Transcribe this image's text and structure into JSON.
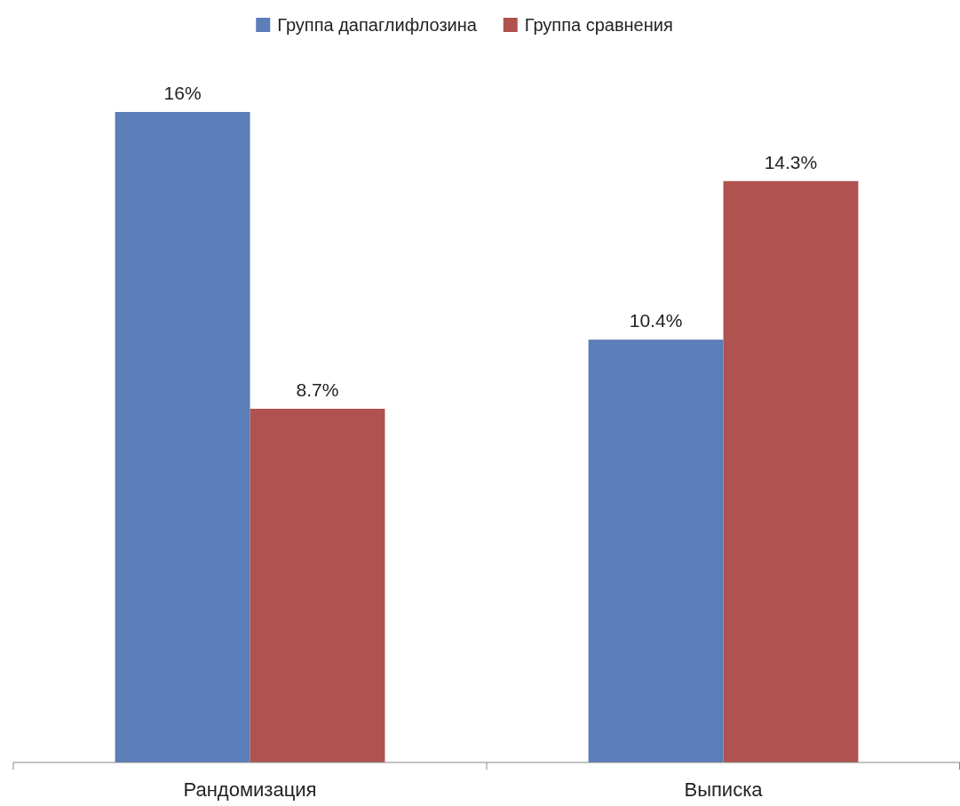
{
  "chart_data": {
    "type": "bar",
    "categories": [
      "Рандомизация",
      "Выписка"
    ],
    "series": [
      {
        "name": "Группа дапаглифлозина",
        "color": "#5b7db8",
        "values": [
          16,
          10.4
        ],
        "value_labels": [
          "16%",
          "10.4%"
        ]
      },
      {
        "name": "Группа сравнения",
        "color": "#b0524f",
        "values": [
          8.7,
          14.3
        ],
        "value_labels": [
          "8.7%",
          "14.3%"
        ]
      }
    ],
    "legend": "top"
  }
}
